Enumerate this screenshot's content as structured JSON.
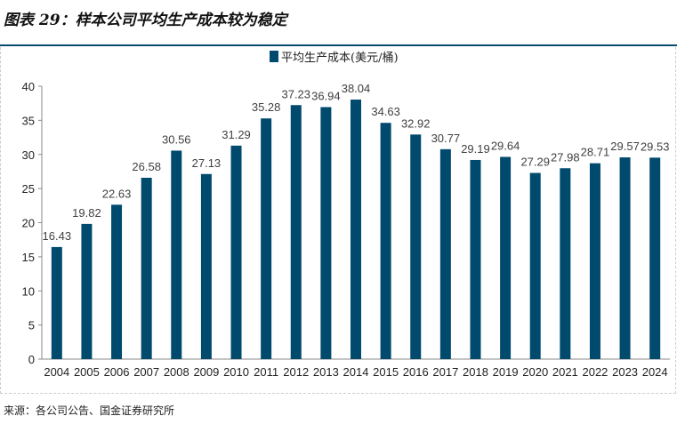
{
  "title": "图表 29：样本公司平均生产成本较为稳定",
  "source": "来源：各公司公告、国金证券研究所",
  "chart_data": {
    "type": "bar",
    "title": "",
    "legend": [
      "平均生产成本(美元/桶)"
    ],
    "legend_position": "top-center",
    "categories": [
      "2004",
      "2005",
      "2006",
      "2007",
      "2008",
      "2009",
      "2010",
      "2011",
      "2012",
      "2013",
      "2014",
      "2015",
      "2016",
      "2017",
      "2018",
      "2019",
      "2020",
      "2021",
      "2022",
      "2023",
      "2024"
    ],
    "series": [
      {
        "name": "平均生产成本(美元/桶)",
        "values": [
          16.43,
          19.82,
          22.63,
          26.58,
          30.56,
          27.13,
          31.29,
          35.28,
          37.23,
          36.94,
          38.04,
          34.63,
          32.92,
          30.77,
          29.19,
          29.64,
          27.29,
          27.98,
          28.71,
          29.57,
          29.53
        ]
      }
    ],
    "ylim": [
      0,
      40
    ],
    "yticks": [
      0,
      5,
      10,
      15,
      20,
      25,
      30,
      35,
      40
    ],
    "xlabel": "",
    "ylabel": "",
    "grid": false,
    "color": "#004a6e"
  }
}
